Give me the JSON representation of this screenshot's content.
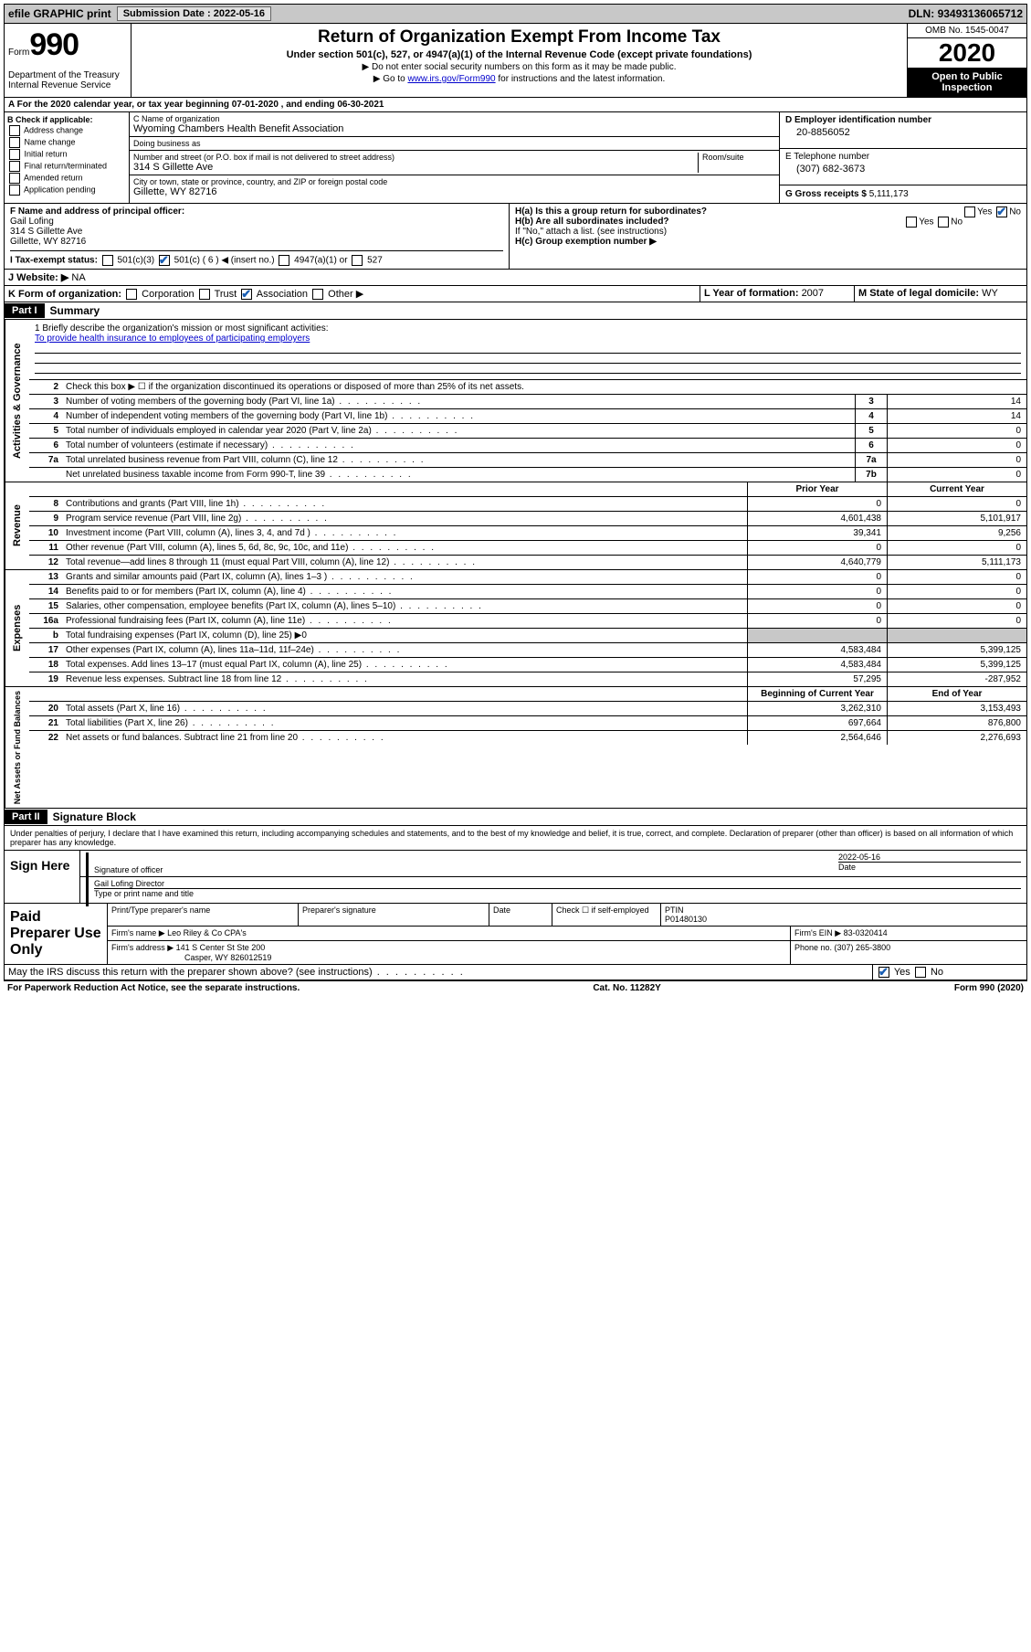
{
  "topbar": {
    "efile": "efile GRAPHIC print",
    "submission_label": "Submission Date : ",
    "submission_date": "2022-05-16",
    "dln_label": "DLN: ",
    "dln": "93493136065712"
  },
  "header": {
    "form_word": "Form",
    "form_number": "990",
    "dept": "Department of the Treasury\nInternal Revenue Service",
    "title": "Return of Organization Exempt From Income Tax",
    "subtitle": "Under section 501(c), 527, or 4947(a)(1) of the Internal Revenue Code (except private foundations)",
    "instr1": "Do not enter social security numbers on this form as it may be made public.",
    "instr2_pre": "Go to ",
    "instr2_link": "www.irs.gov/Form990",
    "instr2_post": " for instructions and the latest information.",
    "omb": "OMB No. 1545-0047",
    "year": "2020",
    "inspection": "Open to Public Inspection"
  },
  "section_a": "A   For the 2020 calendar year, or tax year beginning 07-01-2020    , and ending 06-30-2021",
  "checkboxes": {
    "header": "B Check if applicable:",
    "items": [
      "Address change",
      "Name change",
      "Initial return",
      "Final return/terminated",
      "Amended return",
      "Application pending"
    ]
  },
  "org": {
    "name_label": "C Name of organization",
    "name": "Wyoming Chambers Health Benefit Association",
    "dba_label": "Doing business as",
    "dba": "",
    "street_label": "Number and street (or P.O. box if mail is not delivered to street address)",
    "room_label": "Room/suite",
    "street": "314 S Gillette Ave",
    "city_label": "City or town, state or province, country, and ZIP or foreign postal code",
    "city": "Gillette, WY  82716"
  },
  "ein": {
    "label": "D Employer identification number",
    "value": "20-8856052",
    "phone_label": "E Telephone number",
    "phone": "(307) 682-3673",
    "gross_label": "G Gross receipts $ ",
    "gross": "5,111,173"
  },
  "officer": {
    "label": "F  Name and address of principal officer:",
    "name": "Gail Lofing",
    "street": "314 S Gillette Ave",
    "city": "Gillette, WY  82716"
  },
  "group_return": {
    "ha_label": "H(a)  Is this a group return for subordinates?",
    "yes": "Yes",
    "no": "No",
    "hb_label": "H(b)  Are all subordinates included?",
    "hb_note": "If \"No,\" attach a list. (see instructions)",
    "hc_label": "H(c)  Group exemption number ▶"
  },
  "tax_status": {
    "label": "I   Tax-exempt status:",
    "opt1": "501(c)(3)",
    "opt2": "501(c) ( 6 ) ◀ (insert no.)",
    "opt3": "4947(a)(1) or",
    "opt4": "527"
  },
  "website": {
    "label": "J   Website: ▶ ",
    "value": "NA"
  },
  "form_org": {
    "label": "K Form of organization:",
    "opts": [
      "Corporation",
      "Trust",
      "Association",
      "Other ▶"
    ],
    "checked": 2,
    "year_label": "L Year of formation: ",
    "year": "2007",
    "state_label": "M State of legal domicile: ",
    "state": "WY"
  },
  "part1": {
    "header": "Part I",
    "title": "Summary"
  },
  "summary": {
    "governance_label": "Activities & Governance",
    "revenue_label": "Revenue",
    "expenses_label": "Expenses",
    "netassets_label": "Net Assets or Fund Balances",
    "mission_label": "1   Briefly describe the organization's mission or most significant activities:",
    "mission": "To provide health insurance to employees of participating employers",
    "line2": "Check this box ▶ ☐  if the organization discontinued its operations or disposed of more than 25% of its net assets.",
    "lines_gov": [
      {
        "n": "3",
        "d": "Number of voting members of the governing body (Part VI, line 1a)",
        "box": "3",
        "v": "14"
      },
      {
        "n": "4",
        "d": "Number of independent voting members of the governing body (Part VI, line 1b)",
        "box": "4",
        "v": "14"
      },
      {
        "n": "5",
        "d": "Total number of individuals employed in calendar year 2020 (Part V, line 2a)",
        "box": "5",
        "v": "0"
      },
      {
        "n": "6",
        "d": "Total number of volunteers (estimate if necessary)",
        "box": "6",
        "v": "0"
      },
      {
        "n": "7a",
        "d": "Total unrelated business revenue from Part VIII, column (C), line 12",
        "box": "7a",
        "v": "0"
      },
      {
        "n": "",
        "d": "Net unrelated business taxable income from Form 990-T, line 39",
        "box": "7b",
        "v": "0"
      }
    ],
    "col_prior": "Prior Year",
    "col_current": "Current Year",
    "col_beg": "Beginning of Current Year",
    "col_end": "End of Year",
    "lines_rev": [
      {
        "n": "8",
        "d": "Contributions and grants (Part VIII, line 1h)",
        "p": "0",
        "c": "0"
      },
      {
        "n": "9",
        "d": "Program service revenue (Part VIII, line 2g)",
        "p": "4,601,438",
        "c": "5,101,917"
      },
      {
        "n": "10",
        "d": "Investment income (Part VIII, column (A), lines 3, 4, and 7d )",
        "p": "39,341",
        "c": "9,256"
      },
      {
        "n": "11",
        "d": "Other revenue (Part VIII, column (A), lines 5, 6d, 8c, 9c, 10c, and 11e)",
        "p": "0",
        "c": "0"
      },
      {
        "n": "12",
        "d": "Total revenue—add lines 8 through 11 (must equal Part VIII, column (A), line 12)",
        "p": "4,640,779",
        "c": "5,111,173"
      }
    ],
    "lines_exp": [
      {
        "n": "13",
        "d": "Grants and similar amounts paid (Part IX, column (A), lines 1–3 )",
        "p": "0",
        "c": "0"
      },
      {
        "n": "14",
        "d": "Benefits paid to or for members (Part IX, column (A), line 4)",
        "p": "0",
        "c": "0"
      },
      {
        "n": "15",
        "d": "Salaries, other compensation, employee benefits (Part IX, column (A), lines 5–10)",
        "p": "0",
        "c": "0"
      },
      {
        "n": "16a",
        "d": "Professional fundraising fees (Part IX, column (A), line 11e)",
        "p": "0",
        "c": "0"
      },
      {
        "n": "b",
        "d": "Total fundraising expenses (Part IX, column (D), line 25) ▶0",
        "shaded": true
      },
      {
        "n": "17",
        "d": "Other expenses (Part IX, column (A), lines 11a–11d, 11f–24e)",
        "p": "4,583,484",
        "c": "5,399,125"
      },
      {
        "n": "18",
        "d": "Total expenses. Add lines 13–17 (must equal Part IX, column (A), line 25)",
        "p": "4,583,484",
        "c": "5,399,125"
      },
      {
        "n": "19",
        "d": "Revenue less expenses. Subtract line 18 from line 12",
        "p": "57,295",
        "c": "-287,952"
      }
    ],
    "lines_net": [
      {
        "n": "20",
        "d": "Total assets (Part X, line 16)",
        "p": "3,262,310",
        "c": "3,153,493"
      },
      {
        "n": "21",
        "d": "Total liabilities (Part X, line 26)",
        "p": "697,664",
        "c": "876,800"
      },
      {
        "n": "22",
        "d": "Net assets or fund balances. Subtract line 21 from line 20",
        "p": "2,564,646",
        "c": "2,276,693"
      }
    ]
  },
  "part2": {
    "header": "Part II",
    "title": "Signature Block",
    "perjury": "Under penalties of perjury, I declare that I have examined this return, including accompanying schedules and statements, and to the best of my knowledge and belief, it is true, correct, and complete. Declaration of preparer (other than officer) is based on all information of which preparer has any knowledge.",
    "sign_here": "Sign Here",
    "sig_officer": "Signature of officer",
    "date_label": "Date",
    "sig_date": "2022-05-16",
    "officer_name": "Gail Lofing  Director",
    "type_label": "Type or print name and title"
  },
  "preparer": {
    "label": "Paid Preparer Use Only",
    "print_name_label": "Print/Type preparer's name",
    "print_name": "",
    "sig_label": "Preparer's signature",
    "date_label": "Date",
    "check_label": "Check ☐ if self-employed",
    "ptin_label": "PTIN",
    "ptin": "P01480130",
    "firm_label": "Firm's name    ▶ ",
    "firm": "Leo Riley & Co CPA's",
    "ein_label": "Firm's EIN ▶ ",
    "ein": "83-0320414",
    "addr_label": "Firm's address ▶ ",
    "addr": "141 S Center St Ste 200",
    "addr2": "Casper, WY  826012519",
    "phone_label": "Phone no. ",
    "phone": "(307) 265-3800"
  },
  "discuss": {
    "text": "May the IRS discuss this return with the preparer shown above? (see instructions)",
    "yes": "Yes",
    "no": "No"
  },
  "footer": {
    "left": "For Paperwork Reduction Act Notice, see the separate instructions.",
    "mid": "Cat. No. 11282Y",
    "right": "Form 990 (2020)"
  }
}
